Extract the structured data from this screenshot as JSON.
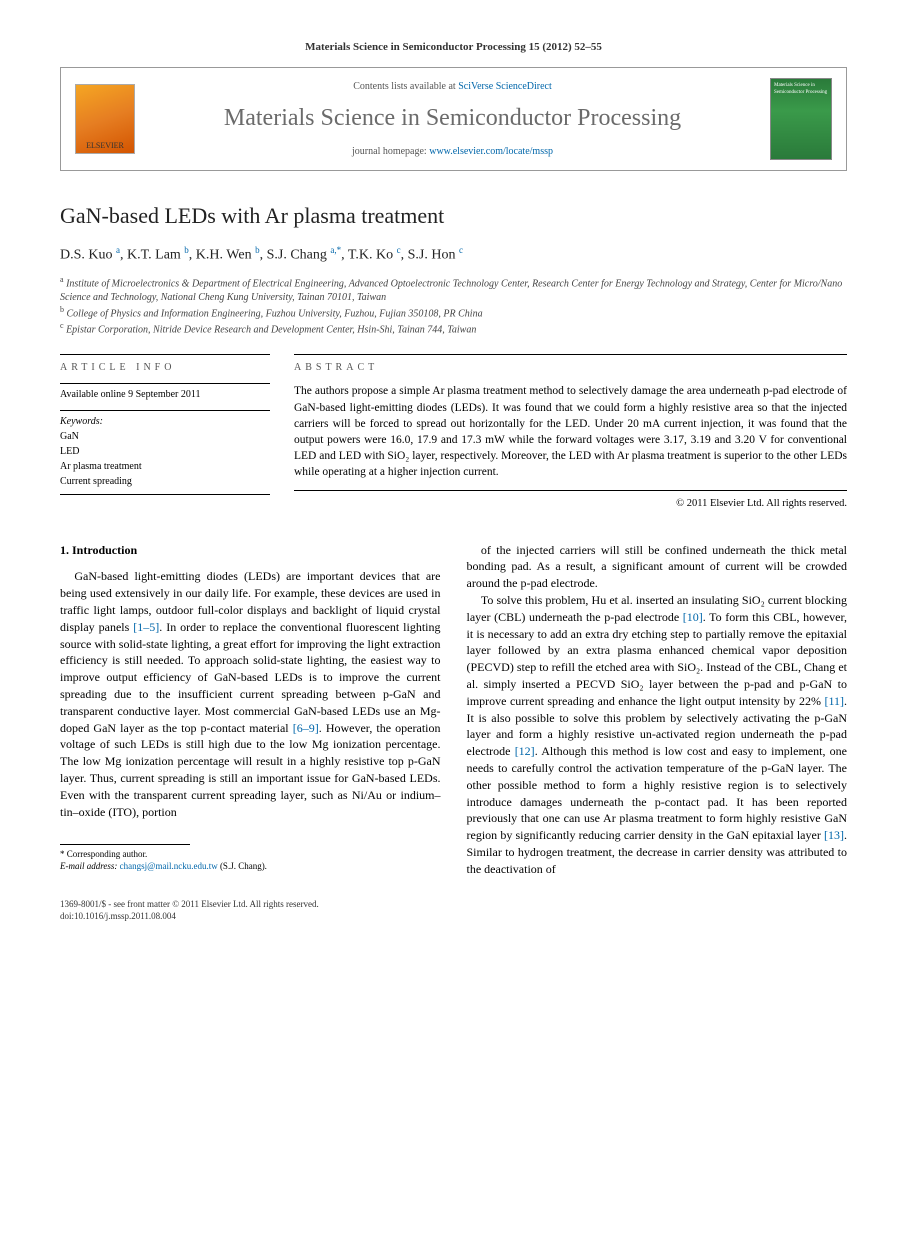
{
  "journal_ref": "Materials Science in Semiconductor Processing 15 (2012) 52–55",
  "header": {
    "contents_prefix": "Contents lists available at ",
    "contents_link": "SciVerse ScienceDirect",
    "journal_title": "Materials Science in Semiconductor Processing",
    "homepage_prefix": "journal homepage: ",
    "homepage_link": "www.elsevier.com/locate/mssp",
    "publisher_label": "ELSEVIER",
    "cover_text": "Materials Science in Semiconductor Processing"
  },
  "article": {
    "title": "GaN-based LEDs with Ar plasma treatment",
    "authors_html": "D.S. Kuo <sup>a</sup>, K.T. Lam <sup>b</sup>, K.H. Wen <sup>b</sup>, S.J. Chang <sup>a,*</sup>, T.K. Ko <sup>c</sup>, S.J. Hon <sup>c</sup>",
    "affiliations": [
      "a Institute of Microelectronics & Department of Electrical Engineering, Advanced Optoelectronic Technology Center, Research Center for Energy Technology and Strategy, Center for Micro/Nano Science and Technology, National Cheng Kung University, Tainan 70101, Taiwan",
      "b College of Physics and Information Engineering, Fuzhou University, Fuzhou, Fujian 350108, PR China",
      "c Epistar Corporation, Nitride Device Research and Development Center, Hsin-Shi, Tainan 744, Taiwan"
    ]
  },
  "info": {
    "heading": "ARTICLE INFO",
    "available": "Available online 9 September 2011",
    "keywords_heading": "Keywords:",
    "keywords": [
      "GaN",
      "LED",
      "Ar plasma treatment",
      "Current spreading"
    ]
  },
  "abstract": {
    "heading": "ABSTRACT",
    "text": "The authors propose a simple Ar plasma treatment method to selectively damage the area underneath p-pad electrode of GaN-based light-emitting diodes (LEDs). It was found that we could form a highly resistive area so that the injected carriers will be forced to spread out horizontally for the LED. Under 20 mA current injection, it was found that the output powers were 16.0, 17.9 and 17.3 mW while the forward voltages were 3.17, 3.19 and 3.20 V for conventional LED and LED with SiO₂ layer, respectively. Moreover, the LED with Ar plasma treatment is superior to the other LEDs while operating at a higher injection current.",
    "copyright": "© 2011 Elsevier Ltd. All rights reserved."
  },
  "body": {
    "section_heading": "1. Introduction",
    "para1": "GaN-based light-emitting diodes (LEDs) are important devices that are being used extensively in our daily life. For example, these devices are used in traffic light lamps, outdoor full-color displays and backlight of liquid crystal display panels [1–5]. In order to replace the conventional fluorescent lighting source with solid-state lighting, a great effort for improving the light extraction efficiency is still needed. To approach solid-state lighting, the easiest way to improve output efficiency of GaN-based LEDs is to improve the current spreading due to the insufficient current spreading between p-GaN and transparent conductive layer. Most commercial GaN-based LEDs use an Mg-doped GaN layer as the top p-contact material [6–9]. However, the operation voltage of such LEDs is still high due to the low Mg ionization percentage. The low Mg ionization percentage will result in a highly resistive top p-GaN layer. Thus, current spreading is still an important issue for GaN-based LEDs. Even with the transparent current spreading layer, such as Ni/Au or indium–tin–oxide (ITO), portion",
    "para2": "of the injected carriers will still be confined underneath the thick metal bonding pad. As a result, a significant amount of current will be crowded around the p-pad electrode.",
    "para3": "To solve this problem, Hu et al. inserted an insulating SiO₂ current blocking layer (CBL) underneath the p-pad electrode [10]. To form this CBL, however, it is necessary to add an extra dry etching step to partially remove the epitaxial layer followed by an extra plasma enhanced chemical vapor deposition (PECVD) step to refill the etched area with SiO₂. Instead of the CBL, Chang et al. simply inserted a PECVD SiO₂ layer between the p-pad and p-GaN to improve current spreading and enhance the light output intensity by 22% [11]. It is also possible to solve this problem by selectively activating the p-GaN layer and form a highly resistive un-activated region underneath the p-pad electrode [12]. Although this method is low cost and easy to implement, one needs to carefully control the activation temperature of the p-GaN layer. The other possible method to form a highly resistive region is to selectively introduce damages underneath the p-contact pad. It has been reported previously that one can use Ar plasma treatment to form highly resistive GaN region by significantly reducing carrier density in the GaN epitaxial layer [13]. Similar to hydrogen treatment, the decrease in carrier density was attributed to the deactivation of"
  },
  "footnote": {
    "corr": "* Corresponding author.",
    "email_label": "E-mail address: ",
    "email": "changsj@mail.ncku.edu.tw",
    "email_who": " (S.J. Chang)."
  },
  "footer": {
    "line1": "1369-8001/$ - see front matter © 2011 Elsevier Ltd. All rights reserved.",
    "line2": "doi:10.1016/j.mssp.2011.08.004"
  },
  "ref_links": {
    "r1_5": "[1–5]",
    "r6_9": "[6–9]",
    "r10": "[10]",
    "r11": "[11]",
    "r12": "[12]",
    "r13": "[13]"
  }
}
